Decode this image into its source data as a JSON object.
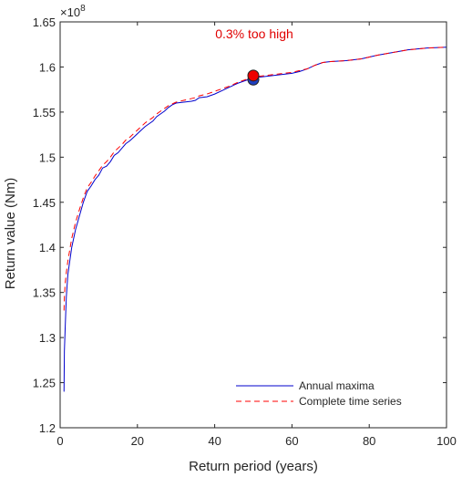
{
  "chart_data": {
    "type": "line",
    "title": "",
    "xlabel": "Return period (years)",
    "ylabel": "Return value (Nm)",
    "xlim": [
      0,
      100
    ],
    "ylim": [
      1.2,
      1.65
    ],
    "y_exponent_label": "×10",
    "y_exponent_power": "8",
    "xticks": [
      0,
      20,
      40,
      60,
      80,
      100
    ],
    "xtick_labels": [
      "0",
      "20",
      "40",
      "60",
      "80",
      "100"
    ],
    "yticks": [
      1.2,
      1.25,
      1.3,
      1.35,
      1.4,
      1.45,
      1.5,
      1.55,
      1.6,
      1.65
    ],
    "ytick_labels": [
      "1.2",
      "1.25",
      "1.3",
      "1.35",
      "1.4",
      "1.45",
      "1.5",
      "1.55",
      "1.6",
      "1.65"
    ],
    "grid": false,
    "legend_position": "bottom-right",
    "annotation": {
      "text": "0.3% too high",
      "color": "#e00000"
    },
    "series": [
      {
        "name": "Annual maxima",
        "color": "#0000cc",
        "style": "solid",
        "x": [
          1.0,
          1.1,
          1.3,
          1.6,
          2,
          3,
          4,
          5,
          6,
          7,
          8,
          9,
          10,
          11,
          12,
          13,
          14,
          15,
          16,
          17,
          18,
          19,
          20,
          21,
          22,
          23,
          24,
          25,
          26,
          27,
          28,
          29,
          30,
          32,
          34,
          35,
          36,
          38,
          40,
          42,
          44,
          45,
          46,
          48,
          50,
          52,
          54,
          56,
          58,
          60,
          62,
          64,
          66,
          68,
          70,
          74,
          78,
          82,
          86,
          90,
          95,
          100
        ],
        "y": [
          1.24,
          1.285,
          1.31,
          1.345,
          1.37,
          1.4,
          1.42,
          1.435,
          1.45,
          1.462,
          1.468,
          1.475,
          1.48,
          1.488,
          1.49,
          1.495,
          1.502,
          1.505,
          1.51,
          1.515,
          1.518,
          1.522,
          1.526,
          1.53,
          1.534,
          1.537,
          1.54,
          1.545,
          1.548,
          1.551,
          1.555,
          1.558,
          1.56,
          1.561,
          1.562,
          1.563,
          1.566,
          1.567,
          1.57,
          1.574,
          1.578,
          1.58,
          1.582,
          1.585,
          1.588,
          1.589,
          1.59,
          1.591,
          1.592,
          1.593,
          1.595,
          1.598,
          1.602,
          1.605,
          1.606,
          1.607,
          1.609,
          1.613,
          1.616,
          1.619,
          1.621,
          1.622
        ]
      },
      {
        "name": "Complete time series",
        "color": "#ff0000",
        "style": "dashed",
        "x": [
          1.0,
          1.1,
          1.3,
          1.6,
          2,
          3,
          4,
          5,
          6,
          7,
          8,
          9,
          10,
          11,
          12,
          13,
          14,
          15,
          16,
          17,
          18,
          19,
          20,
          21,
          22,
          23,
          24,
          25,
          26,
          27,
          28,
          29,
          30,
          32,
          34,
          35,
          36,
          38,
          40,
          42,
          44,
          45,
          46,
          48,
          50,
          52,
          54,
          56,
          58,
          60,
          62,
          64,
          66,
          68,
          70,
          74,
          78,
          82,
          86,
          90,
          95,
          100
        ],
        "y": [
          1.33,
          1.345,
          1.36,
          1.372,
          1.385,
          1.41,
          1.428,
          1.442,
          1.455,
          1.466,
          1.472,
          1.479,
          1.485,
          1.491,
          1.495,
          1.5,
          1.506,
          1.51,
          1.514,
          1.519,
          1.522,
          1.526,
          1.53,
          1.534,
          1.538,
          1.541,
          1.544,
          1.548,
          1.551,
          1.554,
          1.557,
          1.559,
          1.561,
          1.563,
          1.565,
          1.566,
          1.568,
          1.57,
          1.573,
          1.576,
          1.579,
          1.581,
          1.583,
          1.586,
          1.589,
          1.59,
          1.591,
          1.592,
          1.593,
          1.594,
          1.596,
          1.598,
          1.602,
          1.605,
          1.606,
          1.607,
          1.609,
          1.613,
          1.616,
          1.619,
          1.621,
          1.622
        ]
      }
    ],
    "markers": [
      {
        "name": "annual-maxima-50yr-marker",
        "x": 50,
        "y": 1.586,
        "color": "#1f3fbf"
      },
      {
        "name": "complete-series-50yr-marker",
        "x": 50,
        "y": 1.5905,
        "color": "#ee0000"
      }
    ]
  }
}
